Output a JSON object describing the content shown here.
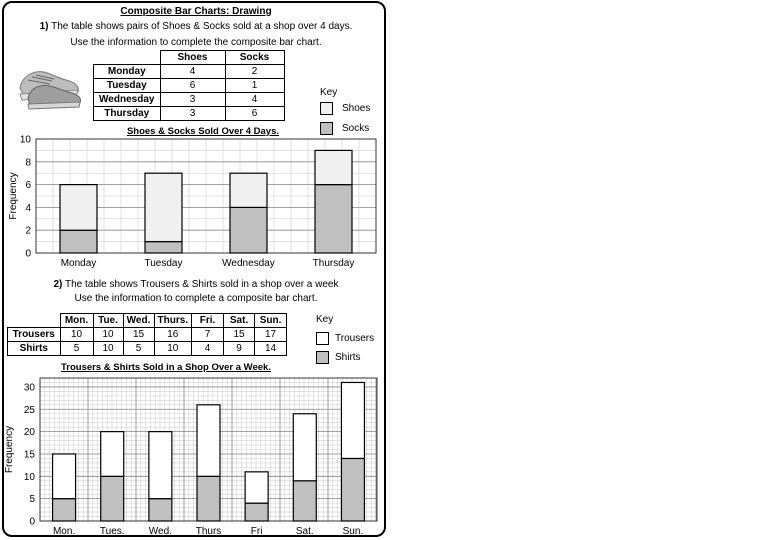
{
  "title": "Composite Bar Charts: Drawing",
  "q1": {
    "number": "1)",
    "line1": "The table shows pairs of Shoes & Socks sold at a shop over 4 days.",
    "line2": "Use the information to complete the composite bar chart.",
    "table": {
      "headers": [
        "Shoes",
        "Socks"
      ],
      "rows": [
        {
          "label": "Monday",
          "values": [
            "4",
            "2"
          ]
        },
        {
          "label": "Tuesday",
          "values": [
            "6",
            "1"
          ]
        },
        {
          "label": "Wednesday",
          "values": [
            "3",
            "4"
          ]
        },
        {
          "label": "Thursday",
          "values": [
            "3",
            "6"
          ]
        }
      ]
    },
    "key": {
      "title": "Key",
      "items": [
        {
          "label": "Shoes",
          "color": "#f0f0f0"
        },
        {
          "label": "Socks",
          "color": "#c0c0c0"
        }
      ]
    }
  },
  "q2": {
    "number": "2)",
    "line1": "The table shows Trousers & Shirts sold in a shop over a week",
    "line2": "Use the information to complete a composite bar chart.",
    "table": {
      "headers": [
        "Mon.",
        "Tue.",
        "Wed.",
        "Thurs.",
        "Fri.",
        "Sat.",
        "Sun."
      ],
      "rows": [
        {
          "label": "Trousers",
          "values": [
            "10",
            "10",
            "15",
            "16",
            "7",
            "15",
            "17"
          ]
        },
        {
          "label": "Shirts",
          "values": [
            "5",
            "10",
            "5",
            "10",
            "4",
            "9",
            "14"
          ]
        }
      ]
    },
    "key": {
      "title": "Key",
      "items": [
        {
          "label": "Trousers",
          "color": "#ffffff"
        },
        {
          "label": "Shirts",
          "color": "#c0c0c0"
        }
      ]
    }
  },
  "chart_data": [
    {
      "type": "bar",
      "stacked": true,
      "title": "Shoes & Socks Sold Over 4 Days.",
      "xlabel": "",
      "ylabel": "Frequency",
      "ylim": [
        0,
        10
      ],
      "yticks": [
        0,
        2,
        4,
        6,
        8,
        10
      ],
      "grid": true,
      "categories": [
        "Monday",
        "Tuesday",
        "Wednesday",
        "Thursday"
      ],
      "series": [
        {
          "name": "Socks",
          "values": [
            2,
            1,
            4,
            6
          ],
          "color": "#c0c0c0"
        },
        {
          "name": "Shoes",
          "values": [
            4,
            6,
            3,
            3
          ],
          "color": "#f0f0f0"
        }
      ]
    },
    {
      "type": "bar",
      "stacked": true,
      "title": "Trousers & Shirts Sold in a Shop Over a Week.",
      "xlabel": "",
      "ylabel": "Frequency",
      "ylim": [
        0,
        32
      ],
      "yticks": [
        0,
        5,
        10,
        15,
        20,
        25,
        30
      ],
      "grid": true,
      "categories": [
        "Mon.",
        "Tues.",
        "Wed.",
        "Thurs",
        "Fri",
        "Sat.",
        "Sun."
      ],
      "series": [
        {
          "name": "Shirts",
          "values": [
            5,
            10,
            5,
            10,
            4,
            9,
            14
          ],
          "color": "#c0c0c0"
        },
        {
          "name": "Trousers",
          "values": [
            10,
            10,
            15,
            16,
            7,
            15,
            17
          ],
          "color": "#ffffff"
        }
      ]
    }
  ]
}
